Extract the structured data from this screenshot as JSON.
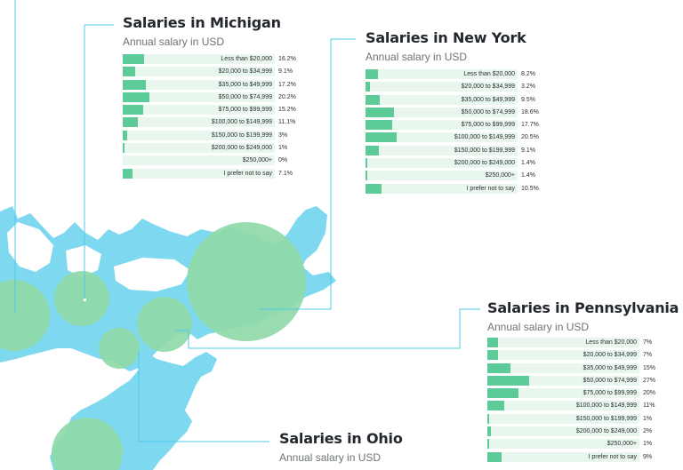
{
  "chart_data": [
    {
      "type": "bar",
      "orientation": "horizontal",
      "title": "Salaries in Michigan",
      "subtitle": "Annual salary in USD",
      "categories": [
        "Less than $20,000",
        "$20,000 to $34,999",
        "$35,000 to $49,999",
        "$50,000 to $74,999",
        "$75,000 to $99,999",
        "$100,000 to $149,999",
        "$150,000 to $199,999",
        "$200,000 to $249,000",
        "$250,000+",
        "I prefer not to say"
      ],
      "values": [
        16.2,
        9.1,
        17.2,
        20.2,
        15.2,
        11.1,
        3,
        1,
        0,
        7.1
      ],
      "value_labels": [
        "16.2%",
        "9.1%",
        "17.2%",
        "20.2%",
        "15.2%",
        "11.1%",
        "3%",
        "1%",
        "0%",
        "7.1%"
      ],
      "xlim": [
        0,
        100
      ]
    },
    {
      "type": "bar",
      "orientation": "horizontal",
      "title": "Salaries in New York",
      "subtitle": "Annual salary in USD",
      "categories": [
        "Less than $20,000",
        "$20,000 to $34,999",
        "$35,000 to $49,999",
        "$50,000 to $74,999",
        "$75,000 to $99,999",
        "$100,000 to $149,999",
        "$150,000 to $199,999",
        "$200,000 to $249,000",
        "$250,000+",
        "I prefer not to say"
      ],
      "values": [
        8.2,
        3.2,
        9.5,
        18.6,
        17.7,
        20.5,
        9.1,
        1.4,
        1.4,
        10.5
      ],
      "value_labels": [
        "8.2%",
        "3.2%",
        "9.5%",
        "18.6%",
        "17.7%",
        "20.5%",
        "9.1%",
        "1.4%",
        "1.4%",
        "10.5%"
      ],
      "xlim": [
        0,
        100
      ]
    },
    {
      "type": "bar",
      "orientation": "horizontal",
      "title": "Salaries in Pennsylvania",
      "subtitle": "Annual salary in USD",
      "categories": [
        "Less than $20,000",
        "$20,000 to $34,999",
        "$35,000 to $49,999",
        "$50,000 to $74,999",
        "$75,000 to $99,999",
        "$100,000 to $149,999",
        "$150,000 to $199,999",
        "$200,000 to $249,000",
        "$250,000+",
        "I prefer not to say"
      ],
      "values": [
        7,
        7,
        15,
        27,
        20,
        11,
        1,
        2,
        1,
        9
      ],
      "value_labels": [
        "7%",
        "7%",
        "15%",
        "27%",
        "20%",
        "11%",
        "1%",
        "2%",
        "1%",
        "9%"
      ],
      "xlim": [
        0,
        100
      ]
    },
    {
      "type": "bar",
      "orientation": "horizontal",
      "title": "Salaries in Ohio",
      "subtitle": "Annual salary in USD",
      "categories": [],
      "values": []
    }
  ],
  "colors": {
    "water": "#7ed9f0",
    "circle": "#8fd9a8",
    "bar": "#5dcb98",
    "track": "#e9f6ee",
    "leader": "#4fc9ea",
    "title": "#23282e",
    "subtitle": "#6d7377"
  }
}
